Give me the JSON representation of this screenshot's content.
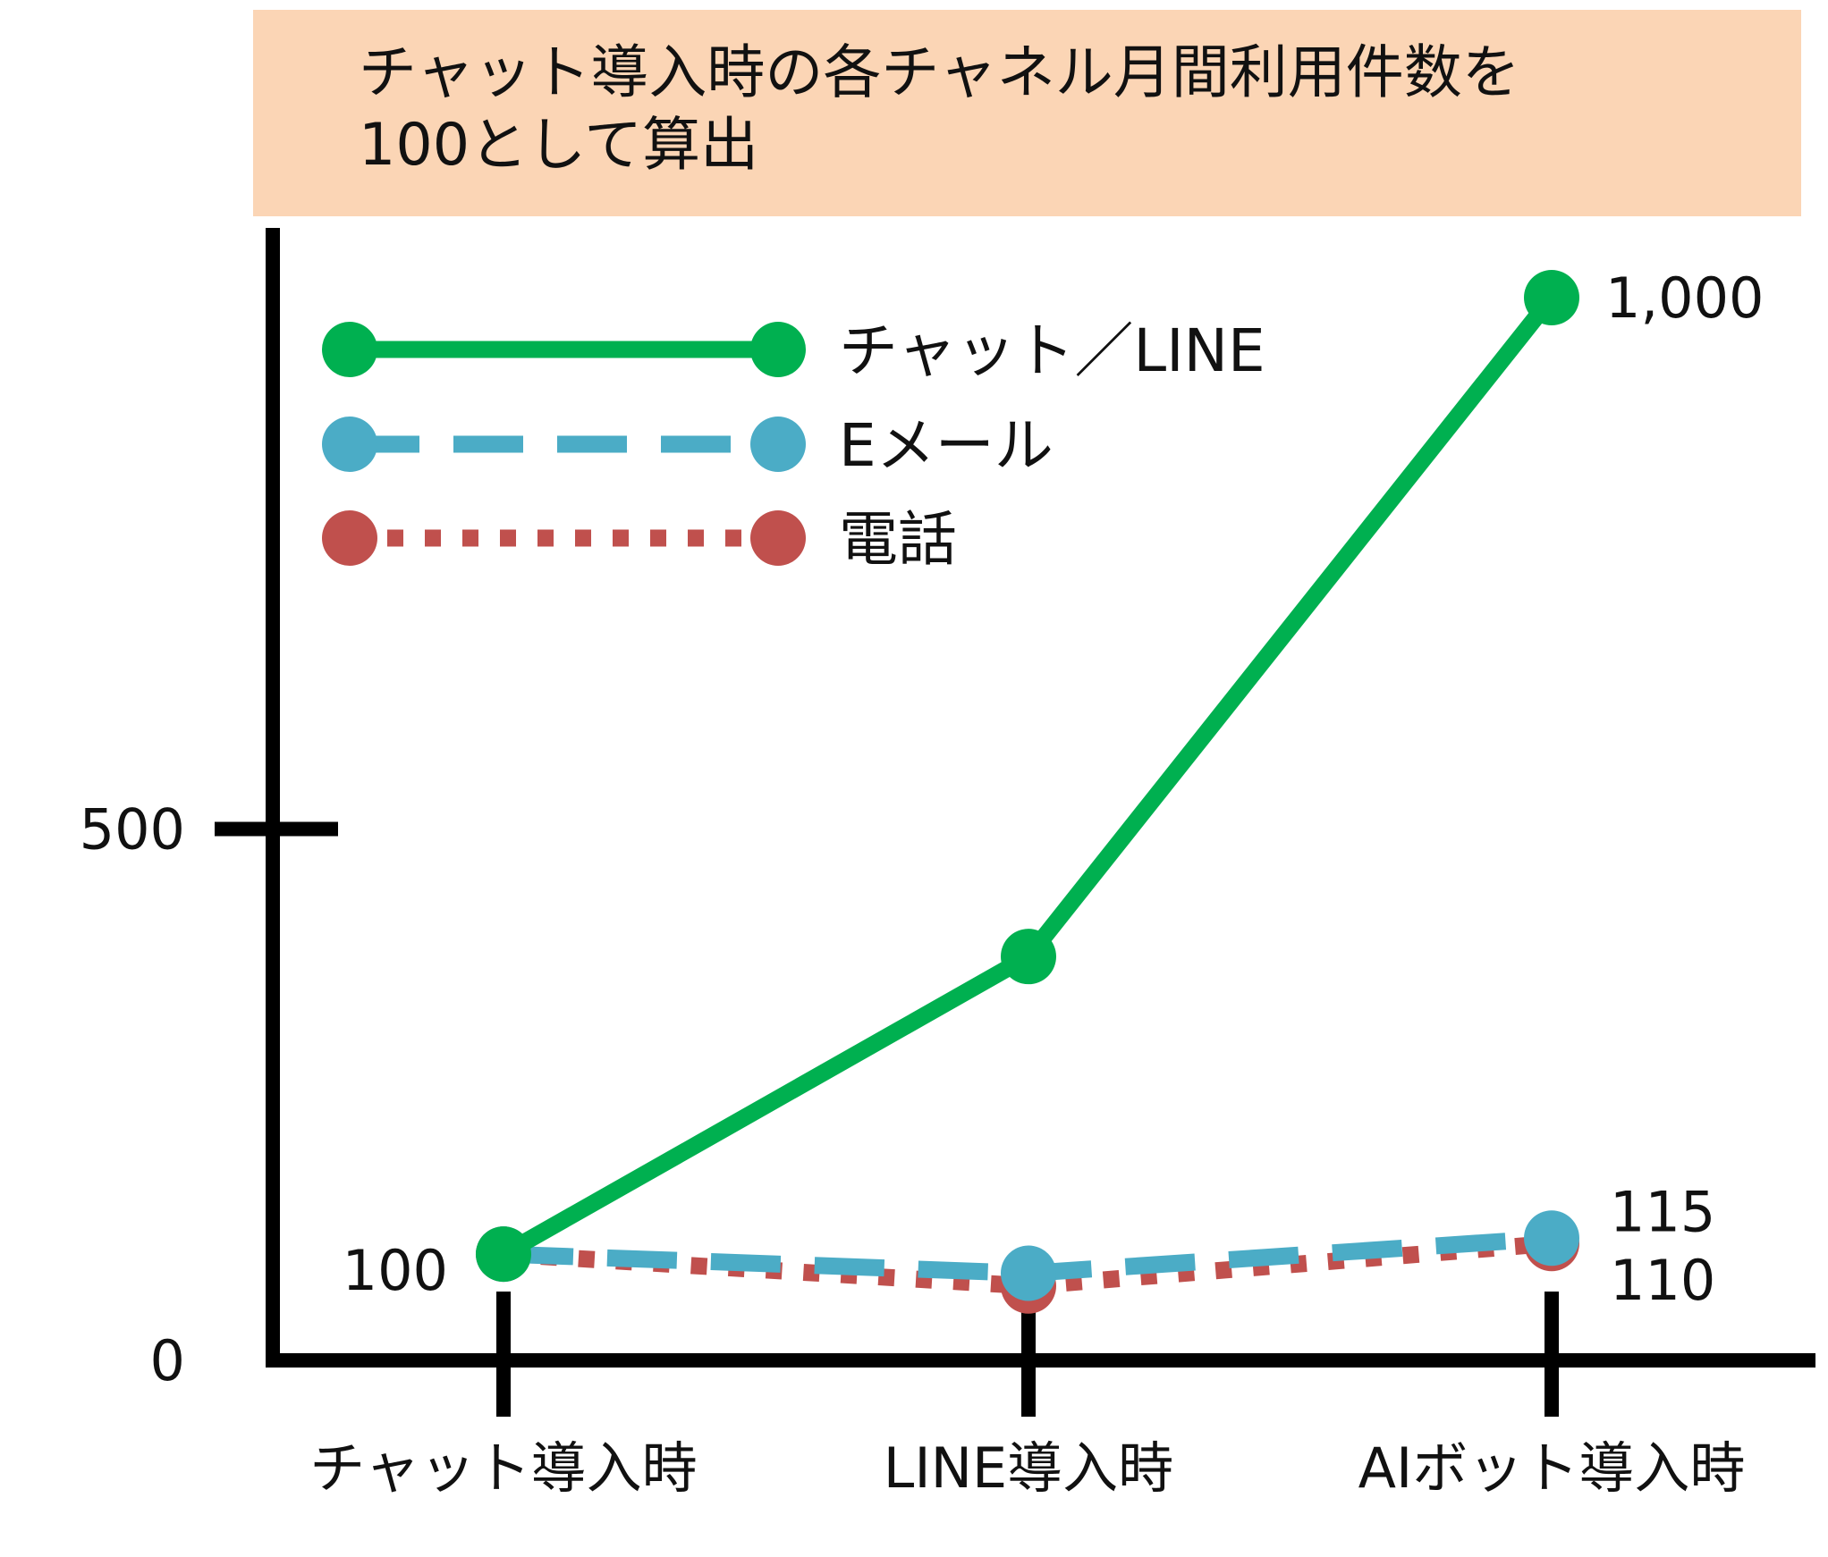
{
  "note": "チャット導入時の各チャネル月間利用件数を\n100として算出",
  "chart_data": {
    "type": "line",
    "categories": [
      "チャット導入時",
      "LINE導入時",
      "AIボット導入時"
    ],
    "ylim": [
      0,
      1000
    ],
    "yticks": [
      {
        "value": 0,
        "label": "0"
      },
      {
        "value": 500,
        "label": "500"
      }
    ],
    "grid": false,
    "legend_position": "top-left",
    "series": [
      {
        "name": "電話",
        "values": [
          100,
          70,
          110
        ],
        "color": "#c0504d",
        "style": "dotted"
      },
      {
        "name": "Eメール",
        "values": [
          100,
          82,
          115
        ],
        "color": "#4bacc6",
        "style": "dashed"
      },
      {
        "name": "チャット／LINE",
        "values": [
          100,
          380,
          1000
        ],
        "color": "#00b050",
        "style": "solid"
      }
    ],
    "legend_order": [
      2,
      1,
      0
    ],
    "data_labels": [
      {
        "text": "100",
        "series": 2,
        "index": 0,
        "side": "left"
      },
      {
        "text": "1,000",
        "series": 2,
        "index": 2,
        "side": "right"
      },
      {
        "text": "115",
        "series": 1,
        "index": 2,
        "side": "right-above"
      },
      {
        "text": "110",
        "series": 0,
        "index": 2,
        "side": "right-below"
      }
    ]
  }
}
